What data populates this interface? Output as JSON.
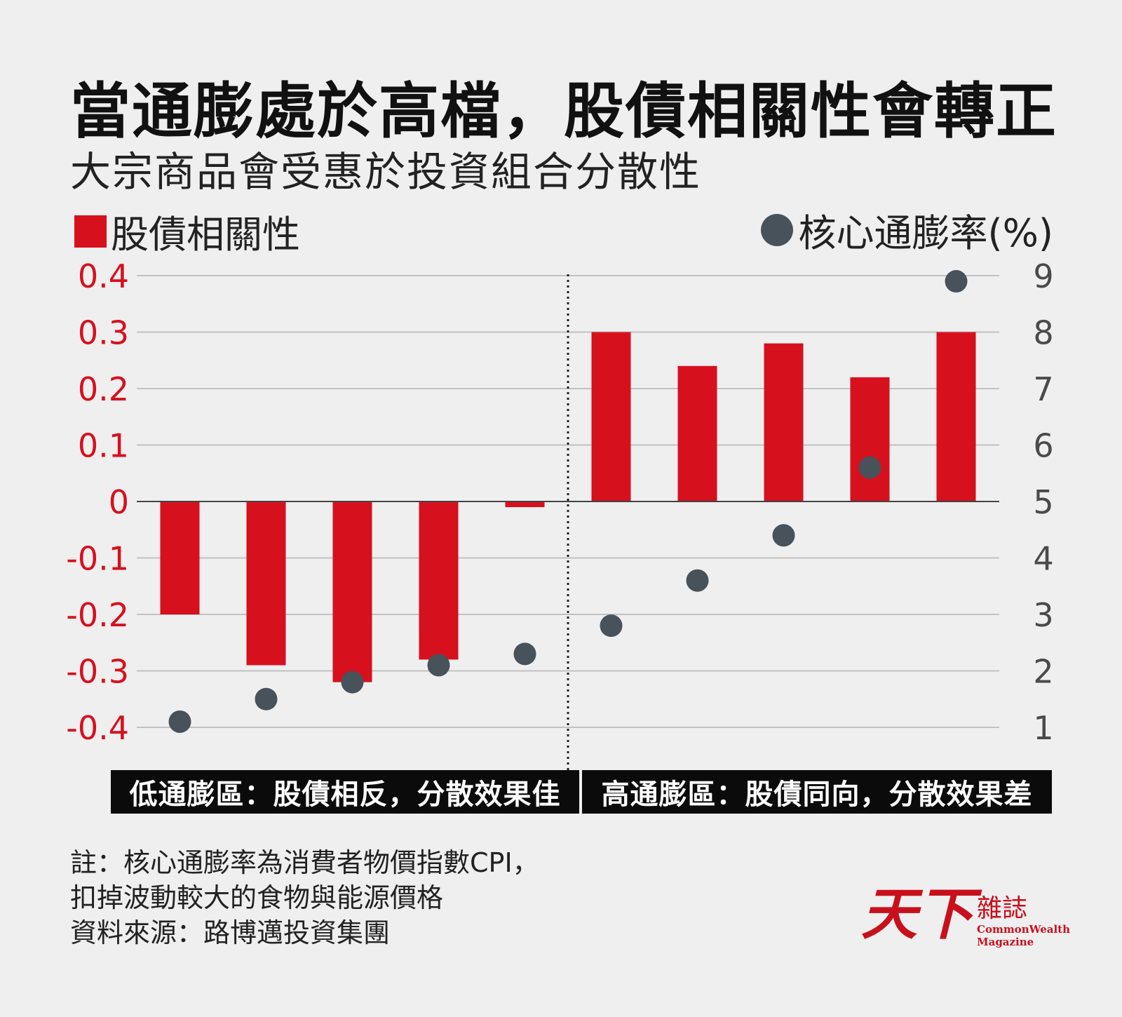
{
  "title": "當通膨處於高檔，股債相關性會轉正",
  "subtitle": "大宗商品會受惠於投資組合分散性",
  "colors": {
    "bar": "#d7101e",
    "dot": "#47525a",
    "left_axis_text": "#d7101e",
    "right_axis_text": "#4a4a4a",
    "grid": "#c2c2c2",
    "zero_line": "#444444",
    "zone_bg": "#0b0b0b",
    "logo_red": "#c8101d"
  },
  "legend": {
    "bar_label": "股債相關性",
    "dot_label": "核心通膨率(%)"
  },
  "zones": {
    "left": "低通膨區：股債相反，分散效果佳",
    "right": "高通膨區：股債同向，分散效果差"
  },
  "notes": [
    "註：核心通膨率為消費者物價指數CPI，",
    "扣掉波動較大的食物與能源價格",
    "資料來源：路博邁投資集團"
  ],
  "logo": {
    "mark": "天下",
    "zh": "雜誌",
    "en_line1": "CommonWealth",
    "en_line2": "Magazine"
  },
  "chart_data": {
    "type": "bar",
    "title": "當通膨處於高檔，股債相關性會轉正",
    "subtitle": "大宗商品會受惠於投資組合分散性",
    "categories": [
      "",
      "",
      "",
      "",
      "",
      "",
      "",
      "",
      "",
      ""
    ],
    "series": [
      {
        "name": "股債相關性",
        "type": "bar",
        "axis": "left",
        "values": [
          -0.2,
          -0.29,
          -0.32,
          -0.28,
          -0.01,
          0.3,
          0.24,
          0.28,
          0.22,
          0.3
        ]
      },
      {
        "name": "核心通膨率(%)",
        "type": "scatter",
        "axis": "right",
        "values": [
          1.1,
          1.5,
          1.8,
          2.1,
          2.3,
          2.8,
          3.6,
          4.4,
          5.6,
          8.9
        ]
      }
    ],
    "y_left": {
      "ylim": [
        -0.4,
        0.4
      ],
      "ticks": [
        0.4,
        0.3,
        0.2,
        0.1,
        0,
        -0.1,
        -0.2,
        -0.3,
        -0.4
      ],
      "tick_labels": [
        "0.4",
        "0.3",
        "0.2",
        "0.1",
        "0",
        "-0.1",
        "-0.2",
        "-0.3",
        "-0.4"
      ]
    },
    "y_right": {
      "ylim": [
        1,
        9
      ],
      "ticks": [
        9,
        8,
        7,
        6,
        5,
        4,
        3,
        2,
        1
      ],
      "tick_labels": [
        "9",
        "8",
        "7",
        "6",
        "5",
        "4",
        "3",
        "2",
        "1"
      ]
    },
    "grid": true,
    "divider_after_index": 4,
    "legend_placement": "top"
  }
}
